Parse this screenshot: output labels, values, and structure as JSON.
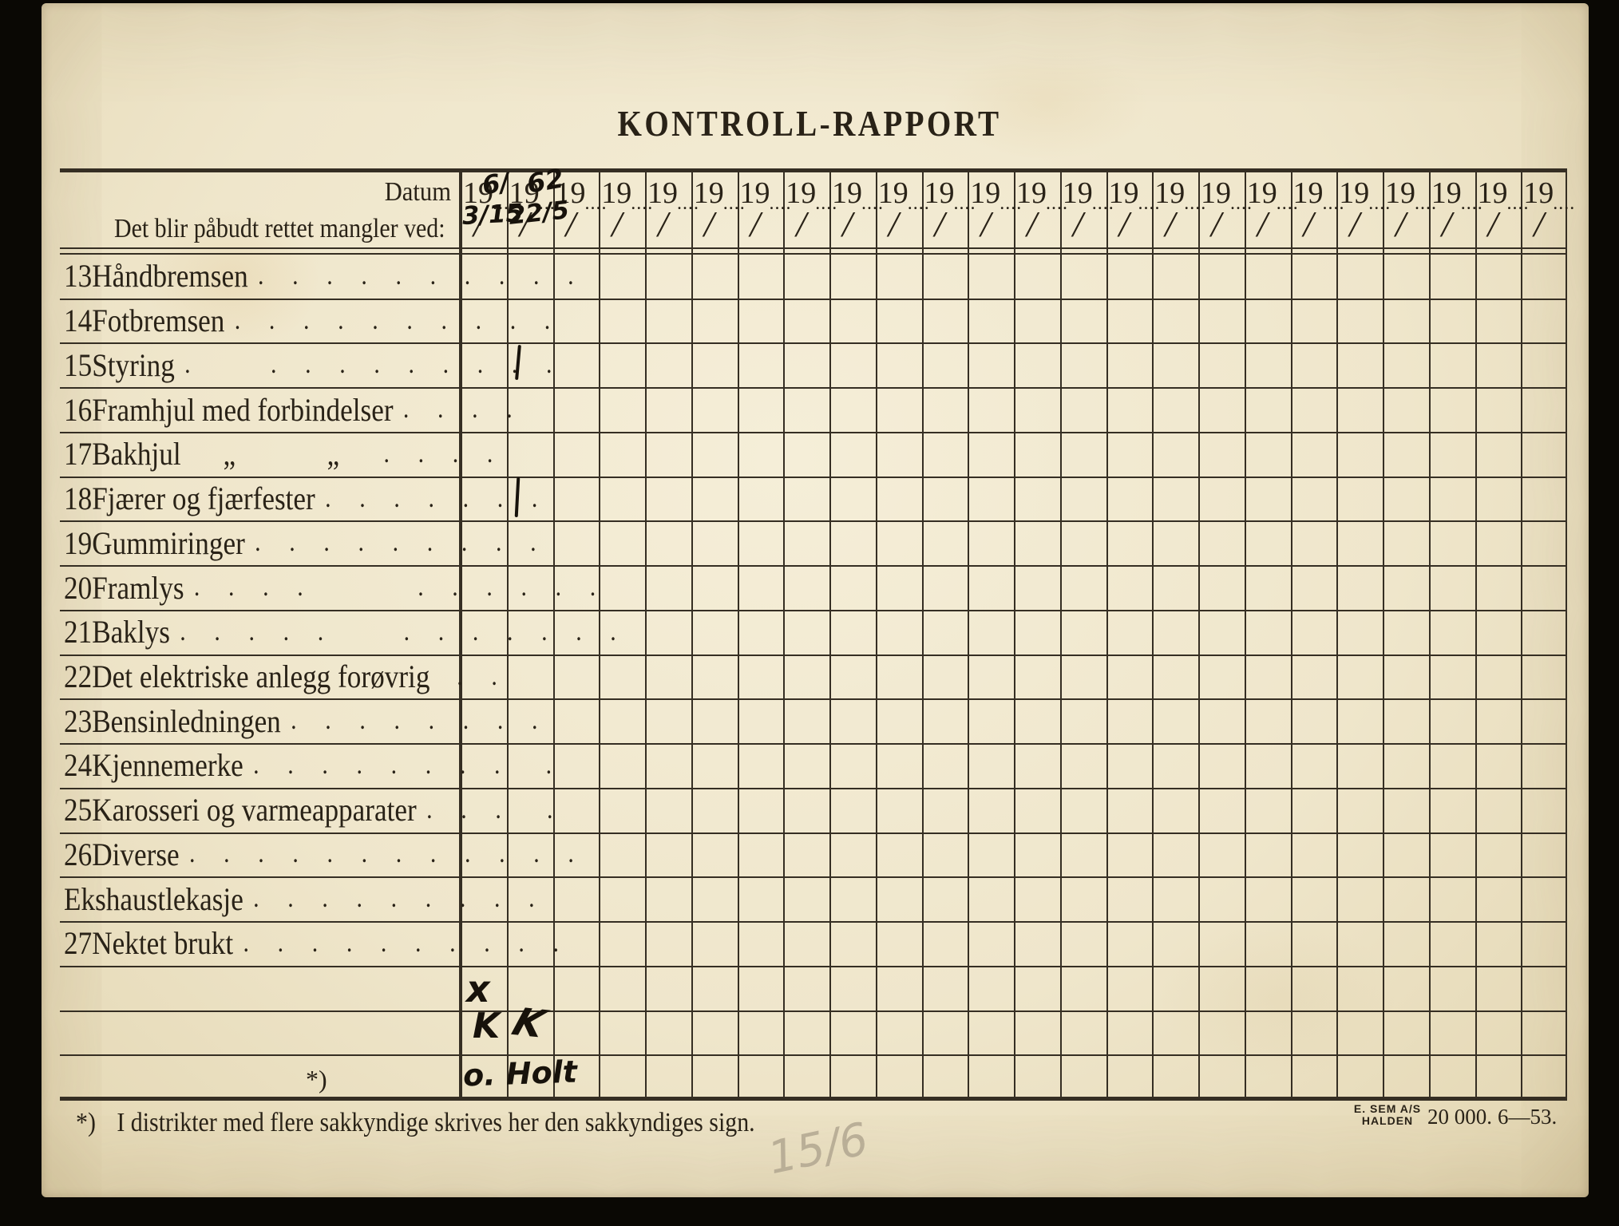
{
  "page": {
    "title": "KONTROLL-RAPPORT"
  },
  "table": {
    "header": {
      "datum_label": "Datum",
      "subject_label": "Det blir påbudt rettet mangler ved:",
      "year_prefix": "19",
      "year_dots": "....",
      "slash": "/",
      "column_count": 24
    },
    "rows": [
      {
        "num": "13",
        "label": "Håndbremsen",
        "dots": ". . . . . . . . . ."
      },
      {
        "num": "14",
        "label": "Fotbremsen",
        "dots": ". . . . . . . . . ."
      },
      {
        "num": "15",
        "label": "Styring",
        "dots": ".    . . . . . . . . ."
      },
      {
        "num": "16",
        "label": "Framhjul med forbindelser",
        "dots": ". . . ."
      },
      {
        "num": "17",
        "label": "Bakhjul      „             „",
        "dots": "  . . . ."
      },
      {
        "num": "18",
        "label": "Fjærer og fjærfester",
        "dots": ". . . . . . ."
      },
      {
        "num": "19",
        "label": "Gummiringer",
        "dots": ". . . . . . . . ."
      },
      {
        "num": "20",
        "label": "Framlys",
        "dots": ". . . .      . . . . . ."
      },
      {
        "num": "21",
        "label": "Baklys",
        "dots": ". . . . .    . . . . . . ."
      },
      {
        "num": "22",
        "label": "Det elektriske anlegg forøvrig",
        "dots": " . ."
      },
      {
        "num": "23",
        "label": "Bensinledningen",
        "dots": ". . . . . . . ."
      },
      {
        "num": "24",
        "label": "Kjennemerke",
        "dots": ". . . . . . . .  ."
      },
      {
        "num": "25",
        "label": "Karosseri og varmeapparater",
        "dots": ". . .  ."
      },
      {
        "num": "26",
        "label": "Diverse",
        "dots": ". . . . . . . . . . . ."
      },
      {
        "num": "",
        "label": "Ekshaustlekasje",
        "dots": ". . . . . . . . ."
      },
      {
        "num": "27",
        "label": "Nektet brukt",
        "dots": ". . . . . . . . . ."
      },
      {
        "num": "",
        "label": "",
        "dots": ""
      },
      {
        "num": "",
        "label": "",
        "dots": ""
      },
      {
        "num": "",
        "label": "",
        "dots": "",
        "ref": "*)"
      }
    ]
  },
  "handwriting": {
    "marks": [
      {
        "id": "year-col1",
        "text": "6/",
        "medium": "ink",
        "meaning": "year 1961, column 1"
      },
      {
        "id": "date-col1",
        "text": "3/15",
        "medium": "ink",
        "meaning": "date 31/5, column 1"
      },
      {
        "id": "year-col2",
        "text": "62",
        "medium": "ink",
        "meaning": "year 1962, column 2"
      },
      {
        "id": "date-col2",
        "text": "22/5",
        "medium": "ink",
        "meaning": "date 22/5, column 2"
      },
      {
        "id": "tick-row15",
        "text": "",
        "medium": "ink",
        "meaning": "tick, row 15 Styring, column 2"
      },
      {
        "id": "tick-row18",
        "text": "",
        "medium": "ink",
        "meaning": "tick, row 18 Fjærer og fjærfester, column 2"
      },
      {
        "id": "x-mark",
        "text": "x",
        "medium": "ink",
        "meaning": "x mark, blank row, column 1"
      },
      {
        "id": "k-col1",
        "text": "K",
        "medium": "ink",
        "meaning": "initial K, column 1"
      },
      {
        "id": "k-col2",
        "text": "K",
        "medium": "ink",
        "meaning": "initial K, column 2"
      },
      {
        "id": "signature",
        "text": "o. Holt",
        "medium": "ink",
        "meaning": "sakkyndig signature"
      },
      {
        "id": "pencil-date",
        "text": "15/6",
        "medium": "pencil",
        "meaning": "pencil note below table"
      }
    ]
  },
  "footnote": {
    "ref": "*)",
    "text": "I distrikter med flere sakkyndige skrives her den sakkyndiges sign."
  },
  "imprint": {
    "printer_line1": "E. SEM A/S",
    "printer_line2": "HALDEN",
    "print_run": "20 000.",
    "edition": "6—53."
  },
  "colors": {
    "paper": "#efe6cb",
    "ink": "#17120b",
    "printed_line": "#352e23",
    "pencil": "#b2a791",
    "scan_background": "#0a0804"
  }
}
